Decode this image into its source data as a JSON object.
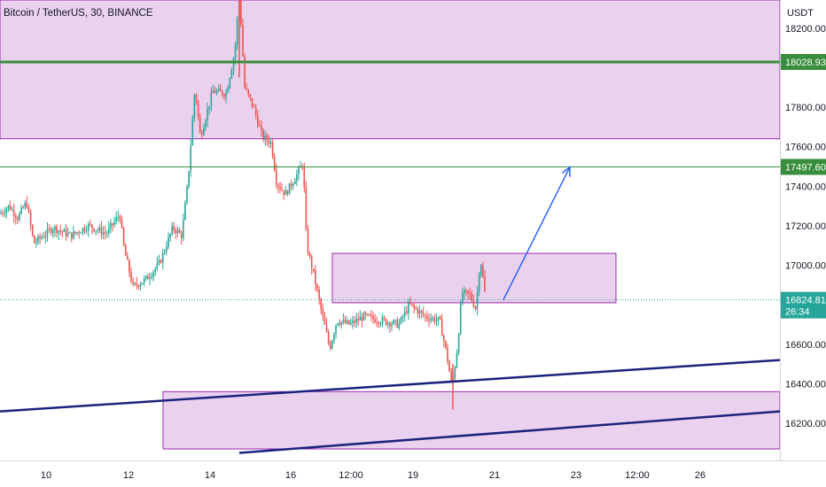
{
  "title": "Bitcoin / TetherUS, 30, BINANCE",
  "currency_label": "USDT",
  "colors": {
    "up": "#26a69a",
    "down": "#ef5350",
    "zone_fill": "rgba(186,104,200,0.30)",
    "zone_border": "#9c27b0",
    "green_line": "#388e3c",
    "trendline": "#1a237e",
    "arrow": "#2962ff",
    "current_badge": "#26a69a",
    "level_badge": "#388e3c"
  },
  "chart_data": {
    "type": "candlestick",
    "title": "Bitcoin / TetherUS, 30, BINANCE",
    "ylim": [
      16050,
      18450
    ],
    "y_ticks": [
      18200,
      17800,
      17600,
      17400,
      17200,
      17000,
      16600,
      16400,
      16200
    ],
    "y_tick_labels": [
      "18200.00",
      "17800.00",
      "17600.00",
      "17400.00",
      "17200.00",
      "17000.00",
      "16600.00",
      "16400.00",
      "16200.00"
    ],
    "x_tick_labels": [
      "10",
      "12",
      "14",
      "16",
      "12:00",
      "19",
      "21",
      "23",
      "12:00",
      "26"
    ],
    "price_path": [
      [
        0,
        17260
      ],
      [
        10,
        17300
      ],
      [
        20,
        17240
      ],
      [
        30,
        17320
      ],
      [
        38,
        17110
      ],
      [
        60,
        17190
      ],
      [
        80,
        17150
      ],
      [
        100,
        17200
      ],
      [
        120,
        17160
      ],
      [
        135,
        17260
      ],
      [
        140,
        17080
      ],
      [
        150,
        16890
      ],
      [
        165,
        16930
      ],
      [
        180,
        17010
      ],
      [
        195,
        17190
      ],
      [
        205,
        17150
      ],
      [
        212,
        17420
      ],
      [
        220,
        17900
      ],
      [
        226,
        17650
      ],
      [
        240,
        17880
      ],
      [
        255,
        17870
      ],
      [
        265,
        18080
      ],
      [
        270,
        18380
      ],
      [
        276,
        17900
      ],
      [
        286,
        17800
      ],
      [
        296,
        17650
      ],
      [
        306,
        17620
      ],
      [
        312,
        17420
      ],
      [
        322,
        17360
      ],
      [
        334,
        17450
      ],
      [
        342,
        17520
      ],
      [
        346,
        17100
      ],
      [
        354,
        16950
      ],
      [
        362,
        16780
      ],
      [
        372,
        16580
      ],
      [
        380,
        16720
      ],
      [
        395,
        16700
      ],
      [
        410,
        16740
      ],
      [
        430,
        16720
      ],
      [
        450,
        16700
      ],
      [
        462,
        16800
      ],
      [
        480,
        16740
      ],
      [
        496,
        16720
      ],
      [
        504,
        16550
      ],
      [
        510,
        16380
      ],
      [
        516,
        16580
      ],
      [
        521,
        16860
      ],
      [
        530,
        16850
      ],
      [
        537,
        16780
      ],
      [
        542,
        17040
      ],
      [
        548,
        16825
      ]
    ],
    "current_price": 16824.81,
    "countdown": "26:34",
    "horizontal_levels": [
      18028.93,
      17497.6
    ],
    "level_labels": [
      "18028.93",
      "17497.60"
    ],
    "zones": [
      {
        "x0": 0,
        "x1": 880,
        "top": 18450,
        "bottom": 17640
      },
      {
        "x0": 375,
        "x1": 695,
        "top": 17060,
        "bottom": 16810
      },
      {
        "x0": 184,
        "x1": 880,
        "top": 16360,
        "bottom": 16070
      }
    ],
    "trendlines": [
      {
        "x0": 0,
        "p0": 16260,
        "x1": 880,
        "p1": 16520
      },
      {
        "x0": 270,
        "p0": 16050,
        "x1": 880,
        "p1": 16260
      }
    ],
    "arrow": {
      "x0": 568,
      "p0": 16825,
      "x1": 643,
      "p1": 17497
    }
  }
}
